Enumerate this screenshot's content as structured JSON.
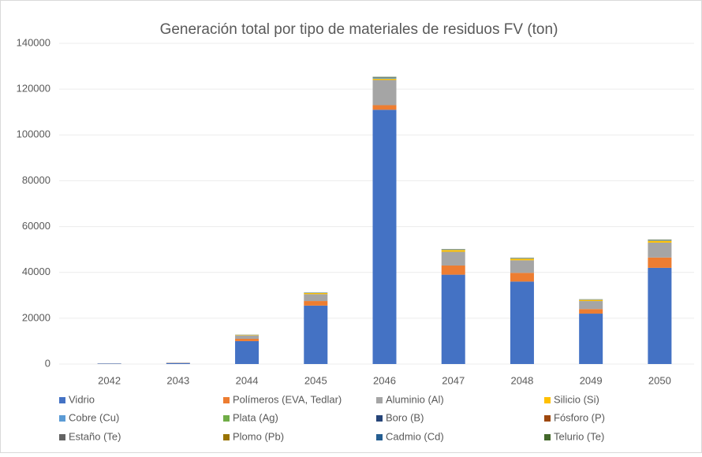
{
  "chart_data": {
    "type": "stacked_bar",
    "title": "Generación total por tipo de materiales de residuos FV  (ton)",
    "categories": [
      "2042",
      "2043",
      "2044",
      "2045",
      "2046",
      "2047",
      "2048",
      "2049",
      "2050"
    ],
    "ylim": [
      0,
      140000
    ],
    "yticks": [
      0,
      20000,
      40000,
      60000,
      80000,
      100000,
      120000,
      140000
    ],
    "grid": true,
    "legend": "bottom",
    "series": [
      {
        "name": "Vidrio",
        "color": "#4472c4",
        "values": [
          200,
          450,
          10000,
          25500,
          111000,
          39000,
          36000,
          22000,
          42000
        ]
      },
      {
        "name": "Polímeros (EVA, Tedlar)",
        "color": "#ed7d31",
        "values": [
          30,
          60,
          1000,
          2000,
          2000,
          4000,
          3800,
          2000,
          4500
        ]
      },
      {
        "name": "Aluminio (Al)",
        "color": "#a5a5a5",
        "values": [
          40,
          80,
          1500,
          3000,
          11000,
          6000,
          5500,
          3500,
          6500
        ]
      },
      {
        "name": "Silicio (Si)",
        "color": "#ffc000",
        "values": [
          5,
          10,
          200,
          500,
          500,
          800,
          700,
          500,
          800
        ]
      },
      {
        "name": "Cobre (Cu)",
        "color": "#5b9bd5",
        "values": [
          2,
          5,
          50,
          100,
          300,
          150,
          150,
          100,
          200
        ]
      },
      {
        "name": "Plata (Ag)",
        "color": "#70ad47",
        "values": [
          0,
          1,
          10,
          20,
          60,
          30,
          30,
          20,
          40
        ]
      },
      {
        "name": "Boro (B)",
        "color": "#264478",
        "values": [
          0,
          0,
          5,
          10,
          30,
          15,
          15,
          10,
          20
        ]
      },
      {
        "name": "Fósforo (P)",
        "color": "#9e480e",
        "values": [
          0,
          0,
          5,
          10,
          30,
          15,
          15,
          10,
          20
        ]
      },
      {
        "name": "Estaño (Te)",
        "color": "#636363",
        "values": [
          0,
          1,
          10,
          20,
          60,
          30,
          30,
          20,
          40
        ]
      },
      {
        "name": "Plomo (Pb)",
        "color": "#997300",
        "values": [
          0,
          1,
          10,
          20,
          60,
          30,
          30,
          20,
          40
        ]
      },
      {
        "name": "Cadmio (Cd)",
        "color": "#255e91",
        "values": [
          0,
          1,
          20,
          40,
          150,
          80,
          80,
          50,
          100
        ]
      },
      {
        "name": "Telurio (Te)",
        "color": "#43682b",
        "values": [
          0,
          1,
          20,
          40,
          150,
          80,
          80,
          50,
          100
        ]
      }
    ]
  }
}
